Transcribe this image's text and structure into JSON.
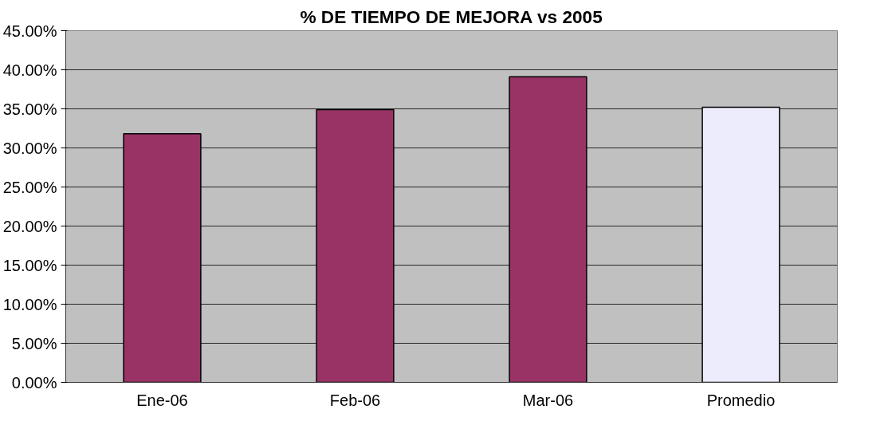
{
  "chart_data": {
    "type": "bar",
    "title": "% DE TIEMPO DE MEJORA vs 2005",
    "categories": [
      "Ene-06",
      "Feb-06",
      "Mar-06",
      "Promedio"
    ],
    "values": [
      31.8,
      34.9,
      39.1,
      35.2
    ],
    "colors": [
      "#993366",
      "#993366",
      "#993366",
      "#ececfc"
    ],
    "ylim": [
      0,
      45
    ],
    "yticks": [
      {
        "value": 0,
        "label": "0.00%"
      },
      {
        "value": 5,
        "label": "5.00%"
      },
      {
        "value": 10,
        "label": "10.00%"
      },
      {
        "value": 15,
        "label": "15.00%"
      },
      {
        "value": 20,
        "label": "20.00%"
      },
      {
        "value": 25,
        "label": "25.00%"
      },
      {
        "value": 30,
        "label": "30.00%"
      },
      {
        "value": 35,
        "label": "35.00%"
      },
      {
        "value": 40,
        "label": "40.00%"
      },
      {
        "value": 45,
        "label": "45.00%"
      }
    ],
    "grid": "y"
  }
}
